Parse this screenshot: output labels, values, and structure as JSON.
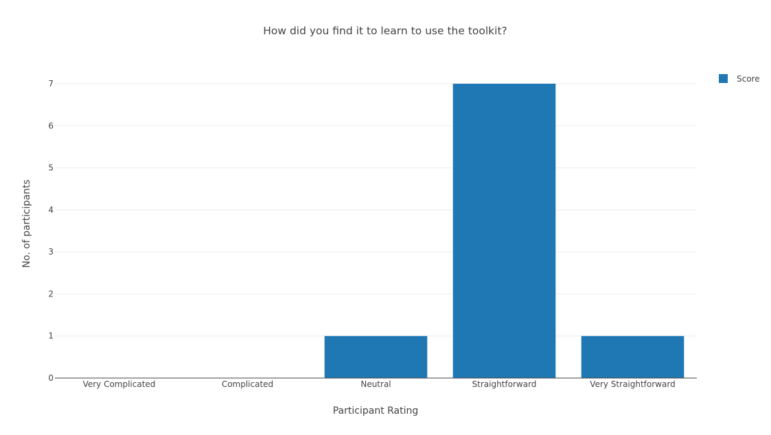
{
  "chart_data": {
    "type": "bar",
    "title": "How did you find it to learn to use the toolkit?",
    "xlabel": "Participant Rating",
    "ylabel": "No. of participants",
    "categories": [
      "Very Complicated",
      "Complicated",
      "Neutral",
      "Straightforward",
      "Very Straightforward"
    ],
    "series": [
      {
        "name": "Score",
        "values": [
          0,
          0,
          1,
          7,
          1
        ],
        "color": "#1f77b4"
      }
    ],
    "ylim": [
      0,
      7
    ],
    "yticks": [
      0,
      1,
      2,
      3,
      4,
      5,
      6,
      7
    ],
    "grid": true,
    "legend_position": "top-right"
  }
}
